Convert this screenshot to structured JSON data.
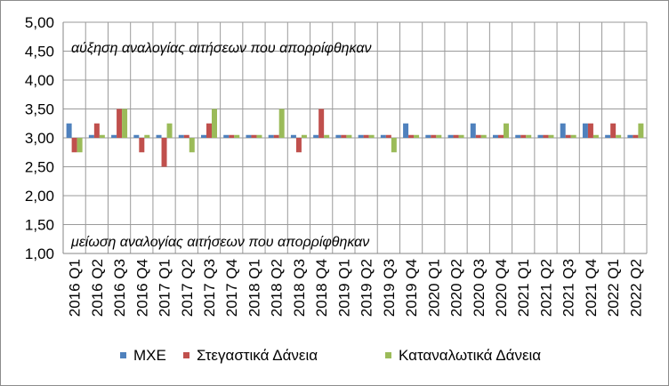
{
  "chart_data": {
    "type": "bar",
    "title": "",
    "xlabel": "",
    "ylabel": "",
    "ylim": [
      1.0,
      5.0
    ],
    "yticks": [
      "1,00",
      "1,50",
      "2,00",
      "2,50",
      "3,00",
      "3,50",
      "4,00",
      "4,50",
      "5,00"
    ],
    "grid": "horizontal and vertical",
    "legend_position": "bottom",
    "baseline": 3.0,
    "categories": [
      "2016 Q1",
      "2016 Q2",
      "2016 Q3",
      "2016 Q4",
      "2017 Q1",
      "2017 Q2",
      "2017 Q3",
      "2017 Q4",
      "2018 Q1",
      "2018 Q2",
      "2018 Q3",
      "2018 Q4",
      "2019 Q1",
      "2019 Q2",
      "2019 Q3",
      "2019 Q4",
      "2020 Q1",
      "2020 Q2",
      "2020 Q3",
      "2020 Q4",
      "2021 Q1",
      "2021 Q2",
      "2021 Q3",
      "2021 Q4",
      "2022 Q1",
      "2022 Q2"
    ],
    "series": [
      {
        "name": "ΜΧΕ",
        "color": "#4f81bd",
        "values": [
          3.25,
          3.05,
          3.05,
          3.05,
          3.05,
          3.05,
          3.05,
          3.05,
          3.05,
          3.05,
          3.05,
          3.05,
          3.05,
          3.05,
          3.05,
          3.25,
          3.05,
          3.05,
          3.25,
          3.05,
          3.05,
          3.05,
          3.25,
          3.25,
          3.05,
          3.05
        ]
      },
      {
        "name": "Στεγαστικά Δάνεια",
        "color": "#c0504d",
        "values": [
          2.75,
          3.25,
          3.5,
          2.75,
          2.5,
          3.05,
          3.25,
          3.05,
          3.05,
          3.05,
          2.75,
          3.5,
          3.05,
          3.05,
          3.05,
          3.05,
          3.05,
          3.05,
          3.05,
          3.05,
          3.05,
          3.05,
          3.05,
          3.25,
          3.25,
          3.05
        ]
      },
      {
        "name": "Καταναλωτικά Δάνεια",
        "color": "#9bbb59",
        "values": [
          2.75,
          3.05,
          3.5,
          3.05,
          3.25,
          2.75,
          3.5,
          3.05,
          3.05,
          3.5,
          3.05,
          3.05,
          3.05,
          3.05,
          2.75,
          3.05,
          3.05,
          3.05,
          3.05,
          3.25,
          3.05,
          3.05,
          3.05,
          3.05,
          3.05,
          3.25
        ]
      }
    ],
    "annotations": {
      "top": "αύξηση αναλογίας αιτήσεων που απορρίφθηκαν",
      "bottom": "μείωση αναλογίας αιτήσεων που απορρίφθηκαν"
    }
  }
}
